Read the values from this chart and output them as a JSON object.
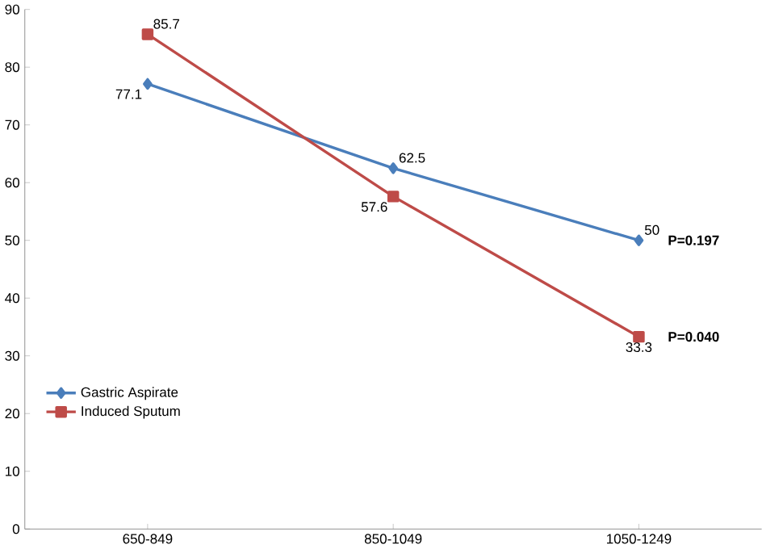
{
  "chart_data": {
    "type": "line",
    "categories": [
      "650-849",
      "850-1049",
      "1050-1249"
    ],
    "series": [
      {
        "name": "Gastric Aspirate",
        "color": "#4a7ebb",
        "marker": "diamond",
        "values": [
          77.1,
          62.5,
          50
        ]
      },
      {
        "name": "Induced Sputum",
        "color": "#be4b48",
        "marker": "square",
        "values": [
          85.7,
          57.6,
          33.3
        ]
      }
    ],
    "ylim": [
      0,
      90
    ],
    "yticks": [
      0,
      10,
      20,
      30,
      40,
      50,
      60,
      70,
      80,
      90
    ],
    "grid": false,
    "legend": "bottom left",
    "data_labels": true,
    "annotations": [
      {
        "text": "P=0.197",
        "x": "1050-1249",
        "y": 50
      },
      {
        "text": "P=0.040",
        "x": "1050-1249",
        "y": 33.3
      }
    ]
  }
}
